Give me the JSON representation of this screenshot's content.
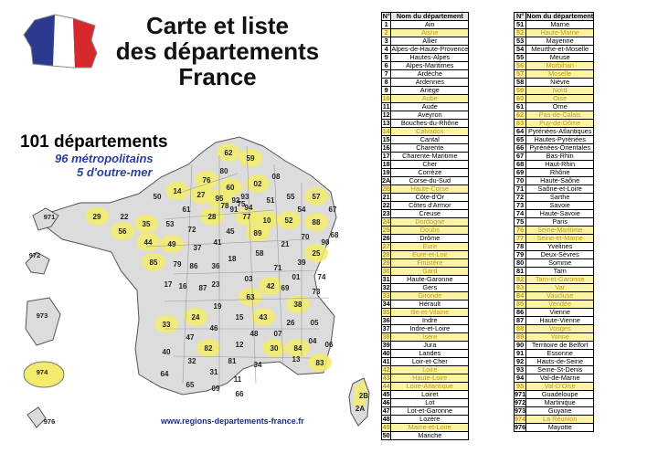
{
  "title_lines": [
    "Carte et liste",
    "des départements",
    "France"
  ],
  "info": {
    "line1": "101 départements",
    "line2": "96 métropolitains",
    "line3": "5 d'outre-mer"
  },
  "url": "www.regions-departements-france.fr",
  "colors": {
    "highlight": "#fbf3a4",
    "highlight_text": "#c09a1c",
    "map_fill": "#d9d9d9",
    "map_highlight": "#f2ec6a",
    "info_blue": "#2a3f9a"
  },
  "table_headers": {
    "num": "N°",
    "name": "Nom du département"
  },
  "departments_col1": [
    {
      "n": "1",
      "name": "Ain",
      "hl": false
    },
    {
      "n": "2",
      "name": "Aisne",
      "hl": true
    },
    {
      "n": "3",
      "name": "Allier",
      "hl": false
    },
    {
      "n": "4",
      "name": "Alpes-de-Haute-Provence",
      "hl": false
    },
    {
      "n": "5",
      "name": "Hautes-Alpes",
      "hl": false
    },
    {
      "n": "6",
      "name": "Alpes-Maritimes",
      "hl": false
    },
    {
      "n": "7",
      "name": "Ardèche",
      "hl": false
    },
    {
      "n": "8",
      "name": "Ardennes",
      "hl": false
    },
    {
      "n": "9",
      "name": "Ariège",
      "hl": false
    },
    {
      "n": "10",
      "name": "Aube",
      "hl": true
    },
    {
      "n": "11",
      "name": "Aude",
      "hl": false
    },
    {
      "n": "12",
      "name": "Aveyron",
      "hl": false
    },
    {
      "n": "13",
      "name": "Bouches-du-Rhône",
      "hl": false
    },
    {
      "n": "14",
      "name": "Calvados",
      "hl": true
    },
    {
      "n": "15",
      "name": "Cantal",
      "hl": false
    },
    {
      "n": "16",
      "name": "Charente",
      "hl": false
    },
    {
      "n": "17",
      "name": "Charente-Maritime",
      "hl": false
    },
    {
      "n": "18",
      "name": "Cher",
      "hl": false
    },
    {
      "n": "19",
      "name": "Corrèze",
      "hl": false
    },
    {
      "n": "2A",
      "name": "Corse-du-Sud",
      "hl": false
    },
    {
      "n": "2B",
      "name": "Haute-Corse",
      "hl": true
    },
    {
      "n": "21",
      "name": "Côte-d'Or",
      "hl": false
    },
    {
      "n": "22",
      "name": "Côtes d'Armor",
      "hl": false
    },
    {
      "n": "23",
      "name": "Creuse",
      "hl": false
    },
    {
      "n": "24",
      "name": "Dordogne",
      "hl": true
    },
    {
      "n": "25",
      "name": "Doubs",
      "hl": true
    },
    {
      "n": "26",
      "name": "Drôme",
      "hl": false
    },
    {
      "n": "27",
      "name": "Eure",
      "hl": true
    },
    {
      "n": "28",
      "name": "Eure-et-Loir",
      "hl": true
    },
    {
      "n": "29",
      "name": "Finistère",
      "hl": true
    },
    {
      "n": "30",
      "name": "Gard",
      "hl": true
    },
    {
      "n": "31",
      "name": "Haute-Garonne",
      "hl": false
    },
    {
      "n": "32",
      "name": "Gers",
      "hl": false
    },
    {
      "n": "33",
      "name": "Gironde",
      "hl": true
    },
    {
      "n": "34",
      "name": "Hérault",
      "hl": false
    },
    {
      "n": "35",
      "name": "Ille-et-Vilaine",
      "hl": true
    },
    {
      "n": "36",
      "name": "Indre",
      "hl": false
    },
    {
      "n": "37",
      "name": "Indre-et-Loire",
      "hl": false
    },
    {
      "n": "38",
      "name": "Isère",
      "hl": true
    },
    {
      "n": "39",
      "name": "Jura",
      "hl": false
    },
    {
      "n": "40",
      "name": "Landes",
      "hl": false
    },
    {
      "n": "41",
      "name": "Loir-et-Cher",
      "hl": false
    },
    {
      "n": "42",
      "name": "Loire",
      "hl": true
    },
    {
      "n": "43",
      "name": "Haute-Loire",
      "hl": true
    },
    {
      "n": "44",
      "name": "Loire-Atlantique",
      "hl": true
    },
    {
      "n": "45",
      "name": "Loiret",
      "hl": false
    },
    {
      "n": "46",
      "name": "Lot",
      "hl": false
    },
    {
      "n": "47",
      "name": "Lot-et-Garonne",
      "hl": false
    },
    {
      "n": "48",
      "name": "Lozère",
      "hl": false
    },
    {
      "n": "49",
      "name": "Maine-et-Loire",
      "hl": true
    },
    {
      "n": "50",
      "name": "Manche",
      "hl": false
    }
  ],
  "departments_col2": [
    {
      "n": "51",
      "name": "Marne",
      "hl": false
    },
    {
      "n": "52",
      "name": "Haute-Marne",
      "hl": true
    },
    {
      "n": "53",
      "name": "Mayenne",
      "hl": false
    },
    {
      "n": "54",
      "name": "Meurthe-et-Moselle",
      "hl": false
    },
    {
      "n": "55",
      "name": "Meuse",
      "hl": false
    },
    {
      "n": "56",
      "name": "Morbihan",
      "hl": true
    },
    {
      "n": "57",
      "name": "Moselle",
      "hl": true
    },
    {
      "n": "58",
      "name": "Nièvre",
      "hl": false
    },
    {
      "n": "59",
      "name": "Nord",
      "hl": true
    },
    {
      "n": "60",
      "name": "Oise",
      "hl": true
    },
    {
      "n": "61",
      "name": "Orne",
      "hl": false
    },
    {
      "n": "62",
      "name": "Pas-de-Calais",
      "hl": true
    },
    {
      "n": "63",
      "name": "Puy-de-Dôme",
      "hl": true
    },
    {
      "n": "64",
      "name": "Pyrénées-Atlantiques",
      "hl": false
    },
    {
      "n": "65",
      "name": "Hautes-Pyrénées",
      "hl": false
    },
    {
      "n": "66",
      "name": "Pyrénées-Orientales",
      "hl": false
    },
    {
      "n": "67",
      "name": "Bas-Rhin",
      "hl": false
    },
    {
      "n": "68",
      "name": "Haut-Rhin",
      "hl": false
    },
    {
      "n": "69",
      "name": "Rhône",
      "hl": false
    },
    {
      "n": "70",
      "name": "Haute-Saône",
      "hl": false
    },
    {
      "n": "71",
      "name": "Saône-et-Loire",
      "hl": false
    },
    {
      "n": "72",
      "name": "Sarthe",
      "hl": false
    },
    {
      "n": "73",
      "name": "Savoie",
      "hl": false
    },
    {
      "n": "74",
      "name": "Haute-Savoie",
      "hl": false
    },
    {
      "n": "75",
      "name": "Paris",
      "hl": false
    },
    {
      "n": "76",
      "name": "Seine-Maritime",
      "hl": true
    },
    {
      "n": "77",
      "name": "Seine-et-Marne",
      "hl": true
    },
    {
      "n": "78",
      "name": "Yvelines",
      "hl": false
    },
    {
      "n": "79",
      "name": "Deux-Sèvres",
      "hl": false
    },
    {
      "n": "80",
      "name": "Somme",
      "hl": false
    },
    {
      "n": "81",
      "name": "Tarn",
      "hl": false
    },
    {
      "n": "82",
      "name": "Tarn-et-Garonne",
      "hl": true
    },
    {
      "n": "83",
      "name": "Var",
      "hl": true
    },
    {
      "n": "84",
      "name": "Vaucluse",
      "hl": true
    },
    {
      "n": "85",
      "name": "Vendée",
      "hl": true
    },
    {
      "n": "86",
      "name": "Vienne",
      "hl": false
    },
    {
      "n": "87",
      "name": "Haute-Vienne",
      "hl": false
    },
    {
      "n": "88",
      "name": "Vosges",
      "hl": true
    },
    {
      "n": "89",
      "name": "Yonne",
      "hl": true
    },
    {
      "n": "90",
      "name": "Territoire de Belfort",
      "hl": false
    },
    {
      "n": "91",
      "name": "Essonne",
      "hl": false
    },
    {
      "n": "92",
      "name": "Hauts-de-Seine",
      "hl": false
    },
    {
      "n": "93",
      "name": "Seine-St-Denis",
      "hl": false
    },
    {
      "n": "94",
      "name": "Val-de-Marne",
      "hl": false
    },
    {
      "n": "95",
      "name": "Val-D'Oise",
      "hl": true
    },
    {
      "n": "971",
      "name": "Guadeloupe",
      "hl": false
    },
    {
      "n": "972",
      "name": "Martinique",
      "hl": false
    },
    {
      "n": "973",
      "name": "Guyane",
      "hl": false
    },
    {
      "n": "974",
      "name": "La Réunion",
      "hl": true
    },
    {
      "n": "976",
      "name": "Mayotte",
      "hl": false
    }
  ],
  "map_labels": [
    "62",
    "59",
    "80",
    "02",
    "08",
    "76",
    "60",
    "14",
    "50",
    "27",
    "95",
    "55",
    "57",
    "51",
    "54",
    "67",
    "29",
    "22",
    "61",
    "28",
    "77",
    "10",
    "52",
    "88",
    "68",
    "35",
    "56",
    "53",
    "72",
    "45",
    "89",
    "21",
    "70",
    "90",
    "25",
    "44",
    "49",
    "37",
    "41",
    "18",
    "58",
    "39",
    "71",
    "85",
    "79",
    "86",
    "36",
    "03",
    "01",
    "74",
    "16",
    "23",
    "42",
    "69",
    "87",
    "73",
    "17",
    "19",
    "63",
    "38",
    "24",
    "15",
    "43",
    "26",
    "05",
    "33",
    "46",
    "48",
    "07",
    "04",
    "06",
    "47",
    "12",
    "30",
    "84",
    "13",
    "83",
    "40",
    "82",
    "81",
    "34",
    "32",
    "31",
    "11",
    "64",
    "65",
    "09",
    "66",
    "2A",
    "2B",
    "971",
    "972",
    "973",
    "974",
    "976",
    "75",
    "92",
    "93",
    "94",
    "91",
    "78"
  ],
  "highlighted_map_labels": [
    "62",
    "59",
    "60",
    "02",
    "76",
    "14",
    "27",
    "95",
    "57",
    "77",
    "10",
    "52",
    "88",
    "29",
    "35",
    "56",
    "28",
    "44",
    "49",
    "85",
    "89",
    "25",
    "42",
    "38",
    "63",
    "43",
    "24",
    "33",
    "30",
    "84",
    "83",
    "82",
    "2B",
    "974"
  ]
}
